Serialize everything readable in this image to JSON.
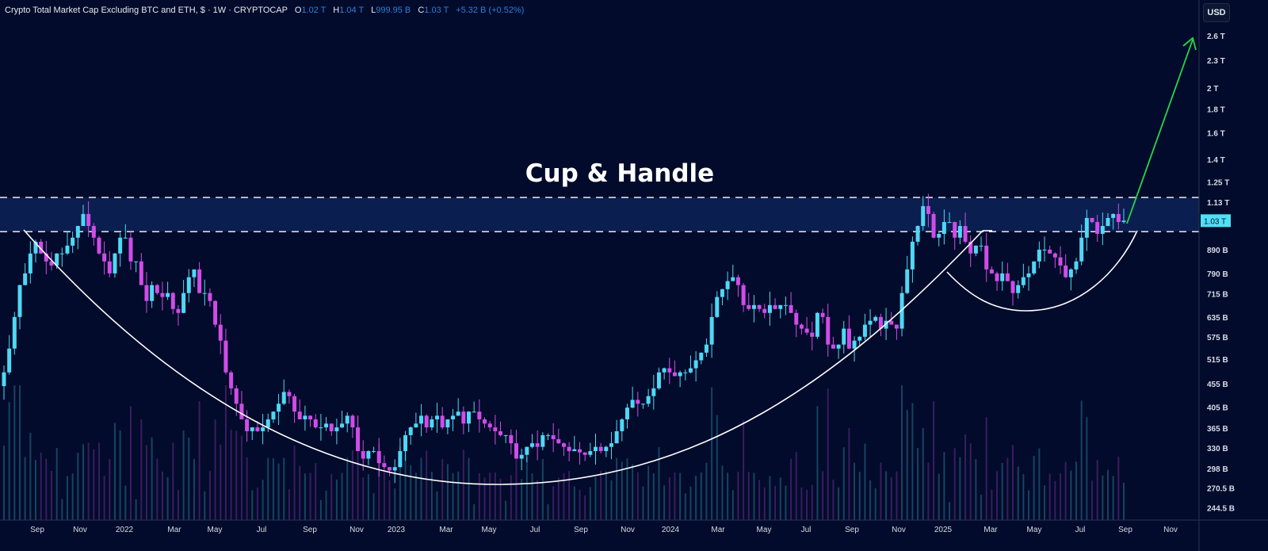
{
  "header": {
    "title": "Crypto Total Market Cap Excluding BTC and ETH, $ · 1W · CRYPTOCAP",
    "o_label": "O",
    "o_value": "1.02 T",
    "h_label": "H",
    "h_value": "1.04 T",
    "l_label": "L",
    "l_value": "999.95 B",
    "c_label": "C",
    "c_value": "1.03 T",
    "change": "+5.32 B (+0.52%)"
  },
  "currency_button": "USD",
  "colors": {
    "background": "#020b2b",
    "up": "#4fd8f5",
    "down": "#d04ce8",
    "arrow": "#22d84a",
    "band": "#0d2257"
  },
  "chart_data": {
    "type": "candlestick",
    "title": "Cup & Handle",
    "unit": "B USD",
    "scale": "log",
    "ylim": [
      244.5,
      2600
    ],
    "first_open": 450,
    "closes": [
      482,
      543,
      636,
      746,
      791,
      874,
      927,
      874,
      840,
      823,
      874,
      874,
      909,
      946,
      1003,
      1065,
      1003,
      946,
      874,
      840,
      791,
      874,
      946,
      946,
      840,
      840,
      746,
      689,
      746,
      717,
      703,
      717,
      662,
      649,
      717,
      776,
      807,
      717,
      717,
      689,
      612,
      565,
      482,
      445,
      412,
      381,
      359,
      366,
      359,
      366,
      381,
      396,
      412,
      437,
      428,
      396,
      381,
      388,
      381,
      366,
      366,
      373,
      359,
      366,
      373,
      388,
      366,
      325,
      313,
      325,
      325,
      306,
      300,
      295,
      300,
      325,
      352,
      366,
      373,
      388,
      366,
      381,
      388,
      366,
      381,
      388,
      396,
      373,
      396,
      396,
      381,
      373,
      366,
      359,
      352,
      352,
      338,
      313,
      319,
      332,
      338,
      332,
      352,
      352,
      345,
      338,
      332,
      325,
      328,
      323,
      319,
      325,
      332,
      325,
      332,
      338,
      359,
      381,
      404,
      420,
      412,
      412,
      428,
      445,
      482,
      492,
      482,
      473,
      482,
      482,
      492,
      512,
      532,
      554,
      636,
      703,
      731,
      761,
      776,
      746,
      675,
      662,
      675,
      662,
      649,
      675,
      662,
      675,
      675,
      649,
      612,
      600,
      588,
      576,
      649,
      636,
      554,
      543,
      554,
      600,
      543,
      565,
      576,
      612,
      624,
      636,
      600,
      624,
      612,
      600,
      717,
      807,
      927,
      1003,
      1108,
      1065,
      946,
      964,
      1023,
      1023,
      946,
      1003,
      927,
      874,
      909,
      909,
      807,
      791,
      761,
      791,
      761,
      717,
      746,
      776,
      791,
      840,
      891,
      891,
      874,
      857,
      823,
      776,
      807,
      840,
      946,
      1044,
      1023,
      964,
      1003,
      1044,
      1065,
      1023,
      1030
    ],
    "price_axis": [
      "2.6 T",
      "2.3 T",
      "2 T",
      "1.8 T",
      "1.6 T",
      "1.4 T",
      "1.25 T",
      "1.13 T",
      "890 B",
      "790 B",
      "715 B",
      "635 B",
      "575 B",
      "515 B",
      "455 B",
      "405 B",
      "365 B",
      "330 B",
      "298 B",
      "270.5 B",
      "244.5 B"
    ],
    "price_axis_values": [
      2600,
      2300,
      2000,
      1800,
      1600,
      1400,
      1250,
      1130,
      890,
      790,
      715,
      635,
      575,
      515,
      455,
      405,
      365,
      330,
      298,
      270.5,
      244.5
    ],
    "current_price_label": "1.03 T",
    "current_price": 1030,
    "time_axis": [
      "Sep",
      "Nov",
      "2022",
      "Mar",
      "May",
      "Jul",
      "Sep",
      "Nov",
      "2023",
      "Mar",
      "May",
      "Jul",
      "Sep",
      "Nov",
      "2024",
      "Mar",
      "May",
      "Jul",
      "Sep",
      "Nov",
      "2025",
      "Mar",
      "May",
      "Jul",
      "Sep",
      "Nov"
    ],
    "resistance_levels": [
      1157,
      975
    ],
    "annotations": [
      "Cup & Handle",
      "cup curve",
      "handle curve",
      "breakout arrow"
    ],
    "grid": false
  }
}
